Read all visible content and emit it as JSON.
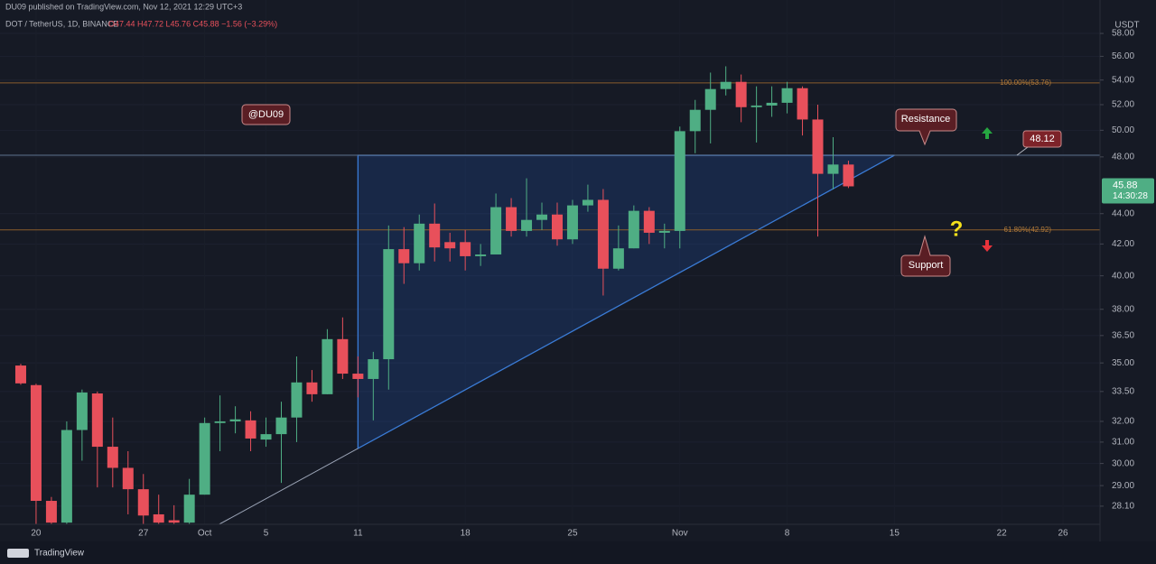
{
  "header": {
    "author_line": "DU09 published on TradingView.com, Nov 12, 2021 12:29 UTC+3",
    "symbol": "DOT / TetherUS, 1D, BINANCE",
    "ohlc": "O47.44 H47.72 L45.76 C45.88 −1.56 (−3.29%)"
  },
  "price_scale": {
    "unit": "USDT",
    "countdown": "14:30:28"
  },
  "footer": {
    "brand": "TradingView"
  },
  "chart_data": {
    "type": "candlestick",
    "log_scale": true,
    "grid": true,
    "up_color": "#4fae84",
    "down_color": "#e8505b",
    "x": [
      "2021-09-19",
      "2021-09-20",
      "2021-09-21",
      "2021-09-22",
      "2021-09-23",
      "2021-09-24",
      "2021-09-25",
      "2021-09-26",
      "2021-09-27",
      "2021-09-28",
      "2021-09-29",
      "2021-09-30",
      "2021-10-01",
      "2021-10-02",
      "2021-10-03",
      "2021-10-04",
      "2021-10-05",
      "2021-10-06",
      "2021-10-07",
      "2021-10-08",
      "2021-10-09",
      "2021-10-10",
      "2021-10-11",
      "2021-10-12",
      "2021-10-13",
      "2021-10-14",
      "2021-10-15",
      "2021-10-16",
      "2021-10-17",
      "2021-10-18",
      "2021-10-19",
      "2021-10-20",
      "2021-10-21",
      "2021-10-22",
      "2021-10-23",
      "2021-10-24",
      "2021-10-25",
      "2021-10-26",
      "2021-10-27",
      "2021-10-28",
      "2021-10-29",
      "2021-10-30",
      "2021-10-31",
      "2021-11-01",
      "2021-11-02",
      "2021-11-03",
      "2021-11-04",
      "2021-11-05",
      "2021-11-06",
      "2021-11-07",
      "2021-11-08",
      "2021-11-09",
      "2021-11-10",
      "2021-11-11",
      "2021-11-12"
    ],
    "open": [
      34.86,
      33.83,
      28.33,
      27.4,
      31.58,
      33.4,
      30.78,
      29.8,
      28.84,
      27.75,
      27.5,
      27.4,
      28.6,
      31.92,
      32.0,
      32.05,
      31.12,
      31.38,
      32.19,
      33.97,
      33.36,
      36.3,
      34.43,
      34.15,
      35.2,
      41.67,
      40.78,
      43.33,
      42.12,
      42.12,
      41.22,
      41.33,
      44.44,
      42.85,
      43.58,
      43.94,
      42.3,
      44.56,
      44.94,
      40.44,
      41.72,
      44.19,
      42.73,
      42.85,
      49.93,
      51.59,
      53.26,
      53.85,
      51.8,
      51.93,
      52.15,
      53.33,
      50.83,
      46.77,
      47.44
    ],
    "high": [
      34.95,
      33.9,
      28.5,
      32.0,
      33.6,
      33.5,
      32.19,
      30.57,
      29.52,
      28.6,
      28.14,
      29.3,
      32.19,
      33.3,
      32.75,
      32.5,
      32.19,
      32.98,
      35.35,
      34.62,
      36.86,
      37.53,
      35.35,
      35.6,
      43.21,
      43.1,
      43.94,
      44.69,
      42.73,
      42.91,
      42.0,
      45.38,
      45.06,
      46.45,
      44.75,
      44.75,
      44.94,
      46.0,
      45.69,
      43.21,
      44.56,
      44.44,
      43.33,
      50.28,
      52.38,
      54.62,
      55.15,
      54.46,
      53.48,
      53.48,
      53.85,
      53.48,
      52.0,
      49.47,
      47.72
    ],
    "low": [
      33.85,
      27.3,
      27.2,
      27.2,
      30.13,
      28.92,
      28.92,
      27.75,
      27.3,
      27.2,
      27.2,
      27.2,
      28.6,
      30.57,
      31.42,
      30.57,
      30.78,
      29.12,
      31.0,
      32.98,
      33.36,
      34.15,
      33.2,
      32.05,
      33.6,
      39.51,
      40.33,
      40.89,
      40.89,
      40.33,
      40.61,
      41.33,
      42.48,
      42.48,
      42.91,
      41.89,
      42.0,
      44.13,
      38.81,
      40.33,
      41.72,
      42.0,
      41.72,
      41.72,
      48.27,
      49.0,
      52.74,
      50.62,
      49.07,
      51.04,
      51.31,
      49.6,
      42.48,
      45.68,
      45.76
    ],
    "close": [
      33.92,
      28.33,
      27.4,
      31.58,
      33.45,
      30.78,
      29.8,
      28.84,
      27.7,
      27.4,
      27.4,
      28.6,
      31.92,
      32.0,
      32.1,
      31.17,
      31.38,
      32.19,
      33.97,
      33.36,
      36.3,
      34.43,
      34.15,
      35.2,
      41.67,
      40.78,
      43.33,
      41.78,
      41.72,
      41.22,
      41.33,
      44.44,
      42.85,
      43.58,
      43.94,
      42.3,
      44.56,
      44.94,
      40.44,
      41.72,
      44.19,
      42.73,
      42.85,
      49.93,
      51.59,
      53.26,
      53.85,
      51.8,
      51.93,
      52.15,
      53.33,
      50.83,
      46.77,
      47.44,
      45.88
    ],
    "xlim": [
      "2021-09-18",
      "2021-11-28"
    ],
    "xticks": [
      {
        "value": "2021-09-20",
        "label": "20"
      },
      {
        "value": "2021-09-27",
        "label": "27"
      },
      {
        "value": "2021-10-01",
        "label": "Oct"
      },
      {
        "value": "2021-10-05",
        "label": "5"
      },
      {
        "value": "2021-10-11",
        "label": "11"
      },
      {
        "value": "2021-10-18",
        "label": "18"
      },
      {
        "value": "2021-10-25",
        "label": "25"
      },
      {
        "value": "2021-11-01",
        "label": "Nov"
      },
      {
        "value": "2021-11-08",
        "label": "8"
      },
      {
        "value": "2021-11-15",
        "label": "15"
      },
      {
        "value": "2021-11-22",
        "label": "22"
      },
      {
        "value": "2021-11-26",
        "label": "26"
      }
    ],
    "ylim": [
      27.33,
      58.73
    ],
    "yticks": [
      {
        "value": 28.1,
        "label": "28.10"
      },
      {
        "value": 29,
        "label": "29.00"
      },
      {
        "value": 30,
        "label": "30.00"
      },
      {
        "value": 31,
        "label": "31.00"
      },
      {
        "value": 32,
        "label": "32.00"
      },
      {
        "value": 33.5,
        "label": "33.50"
      },
      {
        "value": 35,
        "label": "35.00"
      },
      {
        "value": 36.5,
        "label": "36.50"
      },
      {
        "value": 38,
        "label": "38.00"
      },
      {
        "value": 40,
        "label": "40.00"
      },
      {
        "value": 42,
        "label": "42.00"
      },
      {
        "value": 44,
        "label": "44.00"
      },
      {
        "value": 48,
        "label": "48.00"
      },
      {
        "value": 50,
        "label": "50.00"
      },
      {
        "value": 52,
        "label": "52.00"
      },
      {
        "value": 54,
        "label": "54.00"
      },
      {
        "value": 56,
        "label": "56.00"
      },
      {
        "value": 58,
        "label": "58.00"
      }
    ],
    "resistance_level": 48.12,
    "fib": [
      {
        "level": 53.76,
        "label": "100.00%(53.76)"
      },
      {
        "level": 42.92,
        "label": "61.80%(42.92)"
      }
    ],
    "triangle": [
      {
        "x": "2021-10-11",
        "y": 48.12
      },
      {
        "x": "2021-10-11",
        "y": 30.7
      },
      {
        "x": "2021-11-15",
        "y": 48.12
      }
    ],
    "annotations": {
      "watermark": "@DU09",
      "resistance": "Resistance",
      "support": "Support",
      "question": "?"
    }
  }
}
